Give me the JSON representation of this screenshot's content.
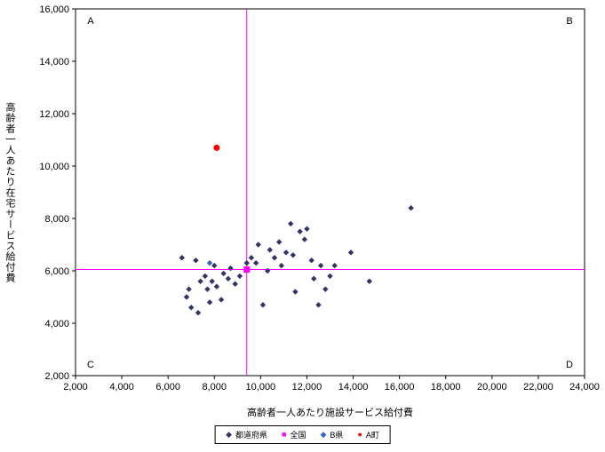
{
  "chart_data": {
    "type": "scatter",
    "title": "",
    "xlabel": "高齢者一人あたり施設サービス給付費",
    "ylabel": "高齢者一人あたり在宅サービス給付費",
    "xlim": [
      2000,
      24000
    ],
    "ylim": [
      2000,
      16000
    ],
    "x_ticks": [
      2000,
      4000,
      6000,
      8000,
      10000,
      12000,
      14000,
      16000,
      18000,
      20000,
      22000,
      24000
    ],
    "y_ticks": [
      2000,
      4000,
      6000,
      8000,
      10000,
      12000,
      14000,
      16000
    ],
    "grid": false,
    "legend_position": "bottom",
    "quadrant_labels": {
      "top_left": "A",
      "top_right": "B",
      "bottom_left": "C",
      "bottom_right": "D"
    },
    "crosshair": {
      "x": 9400,
      "y": 6050,
      "color": "#FF00FF"
    },
    "series": [
      {
        "name": "都道府県",
        "marker": "diamond",
        "color": "#333366",
        "points": [
          [
            6600,
            6500
          ],
          [
            6800,
            5000
          ],
          [
            6900,
            5300
          ],
          [
            7000,
            4600
          ],
          [
            7200,
            6400
          ],
          [
            7300,
            4400
          ],
          [
            7400,
            5600
          ],
          [
            7600,
            5800
          ],
          [
            7700,
            5300
          ],
          [
            7800,
            4800
          ],
          [
            7900,
            5600
          ],
          [
            8000,
            6200
          ],
          [
            8100,
            5400
          ],
          [
            8300,
            4900
          ],
          [
            8400,
            5900
          ],
          [
            8600,
            5700
          ],
          [
            8700,
            6100
          ],
          [
            8900,
            5500
          ],
          [
            9100,
            5800
          ],
          [
            9400,
            6300
          ],
          [
            9600,
            6500
          ],
          [
            9800,
            6300
          ],
          [
            9900,
            7000
          ],
          [
            10100,
            4700
          ],
          [
            10300,
            6000
          ],
          [
            10400,
            6800
          ],
          [
            10600,
            6500
          ],
          [
            10800,
            7100
          ],
          [
            10900,
            6200
          ],
          [
            11100,
            6700
          ],
          [
            11300,
            7800
          ],
          [
            11400,
            6600
          ],
          [
            11500,
            5200
          ],
          [
            11700,
            7500
          ],
          [
            11900,
            7200
          ],
          [
            12000,
            7600
          ],
          [
            12200,
            6400
          ],
          [
            12300,
            5700
          ],
          [
            12500,
            4700
          ],
          [
            12600,
            6200
          ],
          [
            12800,
            5300
          ],
          [
            13000,
            5800
          ],
          [
            13200,
            6200
          ],
          [
            13900,
            6700
          ],
          [
            14700,
            5600
          ],
          [
            16500,
            8400
          ]
        ]
      },
      {
        "name": "全国",
        "marker": "square",
        "color": "#FF00FF",
        "points": [
          [
            9400,
            6050
          ]
        ]
      },
      {
        "name": "B県",
        "marker": "diamond",
        "color": "#3366CC",
        "points": [
          [
            7800,
            6300
          ]
        ]
      },
      {
        "name": "A町",
        "marker": "circle",
        "color": "#FF0000",
        "points": [
          [
            8100,
            10700
          ]
        ]
      }
    ]
  }
}
